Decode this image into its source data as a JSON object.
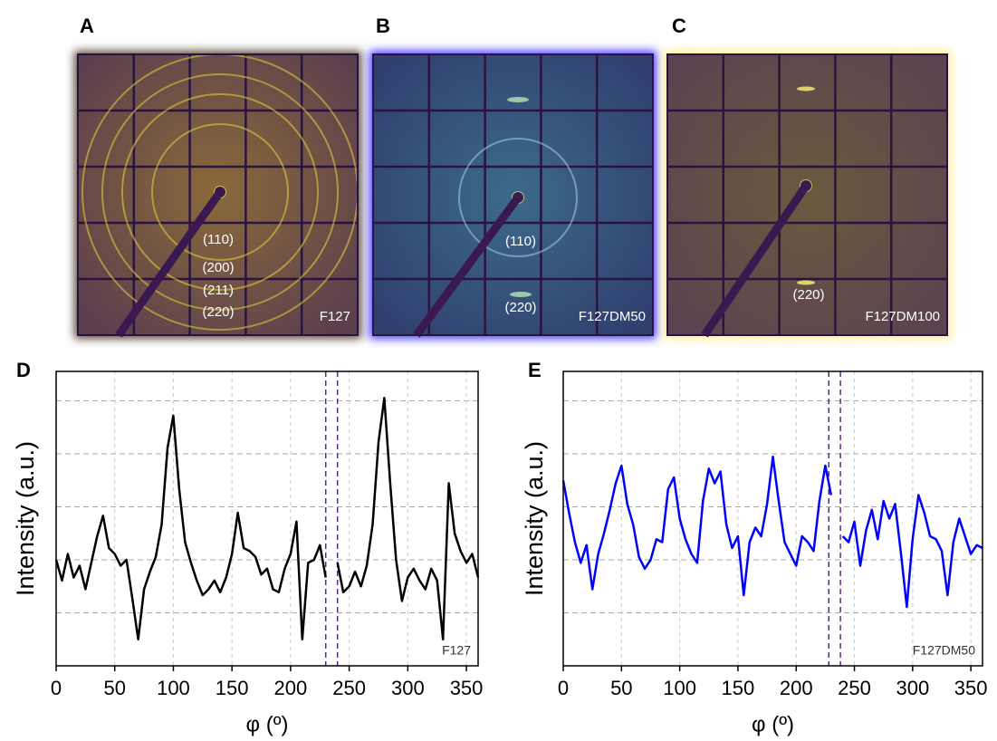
{
  "images": [
    {
      "letter": "A",
      "sample": "F127",
      "labels": [
        "(110)",
        "(200)",
        "(211)",
        "(220)"
      ]
    },
    {
      "letter": "B",
      "sample": "F127DM50",
      "labels": [
        "(110)",
        "(220)"
      ]
    },
    {
      "letter": "C",
      "sample": "F127DM100",
      "labels": [
        "(220)"
      ]
    }
  ],
  "chart_data": [
    {
      "type": "line",
      "panel": "D",
      "annotation": "F127",
      "xlabel": "φ (º)",
      "ylabel": "Intensity (a.u.)",
      "color": "#000000",
      "marker_color": "#5b2a86",
      "markers": [
        230,
        240
      ],
      "xlim": [
        0,
        360
      ],
      "ylim": [
        0,
        10
      ],
      "xticks": [
        0,
        50,
        100,
        150,
        200,
        250,
        300,
        350
      ],
      "ygrid": [
        1.8,
        3.6,
        5.4,
        7.2,
        9
      ],
      "grid": true,
      "x": [
        0,
        5,
        10,
        15,
        20,
        25,
        30,
        35,
        40,
        45,
        50,
        55,
        60,
        65,
        70,
        75,
        80,
        85,
        90,
        95,
        100,
        105,
        110,
        115,
        120,
        125,
        130,
        135,
        140,
        145,
        150,
        155,
        160,
        165,
        170,
        175,
        180,
        185,
        190,
        195,
        200,
        205,
        210,
        215,
        220,
        225,
        230,
        235,
        240,
        245,
        250,
        255,
        260,
        265,
        270,
        275,
        280,
        285,
        290,
        295,
        300,
        305,
        310,
        315,
        320,
        325,
        330,
        335,
        340,
        345,
        350,
        355,
        360
      ],
      "values": [
        3.6,
        2.9,
        3.8,
        3.0,
        3.4,
        2.6,
        3.5,
        4.4,
        5.1,
        4.0,
        3.8,
        3.4,
        3.6,
        2.3,
        0.9,
        2.6,
        3.2,
        3.7,
        4.8,
        7.4,
        8.5,
        6.0,
        4.2,
        3.5,
        2.9,
        2.4,
        2.6,
        2.9,
        2.5,
        3.0,
        3.8,
        5.2,
        4.0,
        3.9,
        3.7,
        3.1,
        3.3,
        2.6,
        2.5,
        3.3,
        3.8,
        4.9,
        0.9,
        3.5,
        3.6,
        4.1,
        3.0,
        null,
        3.5,
        2.5,
        2.7,
        3.2,
        2.7,
        3.4,
        4.8,
        7.6,
        9.1,
        6.2,
        3.6,
        2.2,
        3.0,
        3.3,
        2.9,
        2.6,
        3.3,
        2.9,
        0.9,
        6.2,
        4.5,
        3.9,
        3.5,
        3.8,
        3.0
      ]
    },
    {
      "type": "line",
      "panel": "E",
      "annotation": "F127DM50",
      "xlabel": "φ (º)",
      "ylabel": "Intensity (a.u.)",
      "color": "#0000ff",
      "marker_color": "#5b2a86",
      "markers": [
        228,
        238
      ],
      "xlim": [
        0,
        360
      ],
      "ylim": [
        0,
        10
      ],
      "xticks": [
        0,
        50,
        100,
        150,
        200,
        250,
        300,
        350
      ],
      "ygrid": [
        1.8,
        3.6,
        5.4,
        7.2,
        9
      ],
      "grid": true,
      "x": [
        0,
        5,
        10,
        15,
        20,
        25,
        30,
        35,
        40,
        45,
        50,
        55,
        60,
        65,
        70,
        75,
        80,
        85,
        90,
        95,
        100,
        105,
        110,
        115,
        120,
        125,
        130,
        135,
        140,
        145,
        150,
        155,
        160,
        165,
        170,
        175,
        180,
        185,
        190,
        195,
        200,
        205,
        210,
        215,
        220,
        225,
        230,
        235,
        240,
        245,
        250,
        255,
        260,
        265,
        270,
        275,
        280,
        285,
        290,
        295,
        300,
        305,
        310,
        315,
        320,
        325,
        330,
        335,
        340,
        345,
        350,
        355,
        360
      ],
      "values": [
        6.3,
        5.2,
        4.2,
        3.5,
        4.1,
        2.6,
        3.8,
        4.5,
        5.3,
        6.2,
        6.8,
        5.5,
        4.8,
        3.7,
        3.3,
        3.6,
        4.3,
        4.2,
        6.0,
        6.4,
        5.0,
        4.3,
        3.8,
        3.5,
        5.6,
        6.7,
        6.2,
        6.6,
        4.8,
        4.0,
        4.4,
        2.4,
        4.2,
        4.7,
        4.4,
        5.5,
        7.1,
        5.6,
        4.2,
        3.8,
        3.4,
        4.4,
        4.2,
        3.9,
        5.6,
        6.8,
        5.8,
        null,
        4.4,
        4.2,
        4.9,
        3.4,
        4.6,
        5.3,
        4.3,
        5.6,
        5.0,
        5.5,
        3.8,
        2.0,
        4.3,
        5.8,
        5.2,
        4.4,
        4.3,
        3.9,
        2.4,
        4.2,
        5.0,
        4.4,
        3.8,
        4.1,
        4.0
      ]
    }
  ]
}
